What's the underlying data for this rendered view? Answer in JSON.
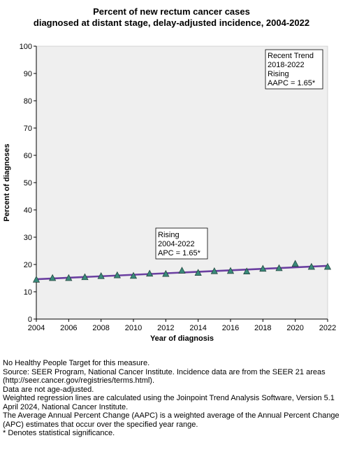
{
  "chart_data": {
    "type": "line",
    "title_lines": [
      "Percent of new rectum cancer cases",
      "diagnosed at distant stage, delay-adjusted incidence, 2004-2022"
    ],
    "xlabel": "Year of diagnosis",
    "ylabel": "Percent of diagnoses",
    "xlim": [
      2004,
      2022
    ],
    "ylim": [
      0,
      100
    ],
    "x_ticks": [
      2004,
      2006,
      2008,
      2010,
      2012,
      2014,
      2016,
      2018,
      2020,
      2022
    ],
    "y_ticks": [
      0,
      10,
      20,
      30,
      40,
      50,
      60,
      70,
      80,
      90,
      100
    ],
    "grid": false,
    "series": [
      {
        "kind": "observed",
        "marker": "triangle",
        "color": "#3a8a7a",
        "x": [
          2004,
          2005,
          2006,
          2007,
          2008,
          2009,
          2010,
          2011,
          2012,
          2013,
          2014,
          2015,
          2016,
          2017,
          2018,
          2019,
          2020,
          2021,
          2022
        ],
        "y": [
          14.4,
          15.0,
          15.0,
          15.3,
          15.7,
          16.0,
          15.8,
          16.6,
          16.5,
          17.7,
          16.9,
          17.5,
          17.6,
          17.4,
          18.4,
          18.6,
          20.2,
          19.1,
          19.1
        ]
      },
      {
        "kind": "trend",
        "color": "#6a3fa0",
        "x": [
          2004,
          2022
        ],
        "y": [
          14.6,
          19.5
        ]
      }
    ],
    "annotations": [
      {
        "lines": [
          "Recent Trend",
          "2018-2022",
          "Rising",
          "AAPC =  1.65*"
        ],
        "position": "top-right"
      },
      {
        "lines": [
          "Rising",
          "2004-2022",
          "APC =  1.65*"
        ],
        "position": "above-trend-middle"
      }
    ]
  },
  "footnotes": [
    "No Healthy People Target for this measure.",
    "Source: SEER Program, National Cancer Institute. Incidence data are from the SEER 21 areas (http://seer.cancer.gov/registries/terms.html).",
    "Data are not age-adjusted.",
    "Weighted regression lines are calculated using the Joinpoint Trend Analysis Software, Version 5.1 April 2024, National Cancer Institute.",
    "The Average Annual Percent Change (AAPC) is a weighted average of the Annual Percent Change (APC) estimates that occur over the specified year range.",
    "* Denotes statistical significance."
  ]
}
